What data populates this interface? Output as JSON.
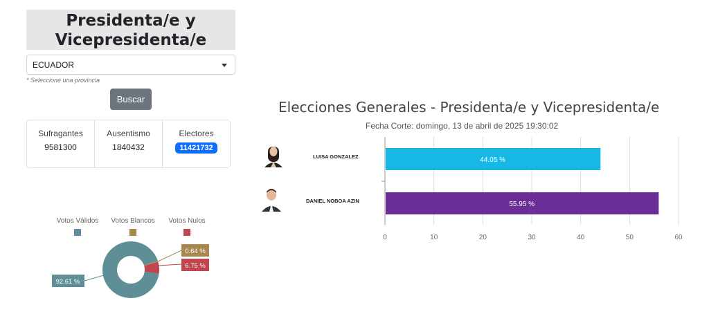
{
  "header": {
    "title_line1": "Presidenta/e y",
    "title_line2": "Vicepresidenta/e"
  },
  "filter": {
    "selected": "ECUADOR",
    "hint": "* Seleccione una provincia",
    "search_label": "Buscar"
  },
  "stats": [
    {
      "label": "Sufragantes",
      "value": "9581300"
    },
    {
      "label": "Ausentismo",
      "value": "1840432"
    },
    {
      "label": "Electores",
      "value": "11421732"
    }
  ],
  "donut": {
    "legend": [
      {
        "label": "Votos Válidos",
        "color": "#5f8f96"
      },
      {
        "label": "Votos Blancos",
        "color": "#a9884f"
      },
      {
        "label": "Votos Nulos",
        "color": "#c0454d"
      }
    ],
    "labels": {
      "validos": "92.61 %",
      "blancos": "0.64 %",
      "nulos": "6.75 %"
    }
  },
  "chart_data": {
    "type": "bar",
    "orientation": "horizontal",
    "title": "Elecciones Generales - Presidenta/e y Vicepresidenta/e",
    "subtitle": "Fecha Corte: domingo, 13 de abril de 2025 19:30:02",
    "categories": [
      "LUISA GONZALEZ",
      "DANIEL NOBOA AZIN"
    ],
    "values": [
      44.05,
      55.95
    ],
    "value_labels": [
      "44.05 %",
      "55.95 %"
    ],
    "colors": [
      "#16b9e5",
      "#6b2e96"
    ],
    "xlim": [
      0,
      60
    ],
    "xticks": [
      0,
      10,
      20,
      30,
      40,
      50,
      60
    ],
    "grid": true
  },
  "donut_data": {
    "type": "pie",
    "categories": [
      "Votos Válidos",
      "Votos Blancos",
      "Votos Nulos"
    ],
    "values": [
      92.61,
      0.64,
      6.75
    ]
  }
}
